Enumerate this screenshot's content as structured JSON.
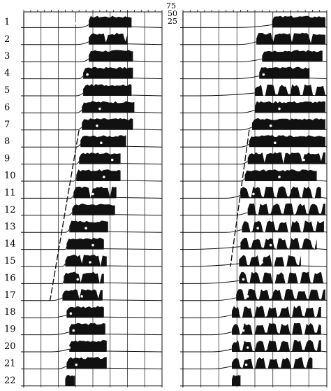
{
  "figure": {
    "row_labels": [
      "1",
      "2",
      "3",
      "4",
      "5",
      "6",
      "7",
      "8",
      "9",
      "10",
      "11",
      "12",
      "13",
      "14",
      "15",
      "16",
      "17",
      "18",
      "19",
      "20",
      "21",
      "22"
    ],
    "scale_labels": [
      "75",
      "50",
      "25"
    ],
    "ink_color": "#111111",
    "background_color": "#ffffff",
    "panels": [
      {
        "name": "left",
        "rows": [
          {
            "onset": 0.4,
            "start": 0.47,
            "end": 0.78,
            "pattern": "solid",
            "marker": 0.37
          },
          {
            "onset": 0.38,
            "start": 0.47,
            "end": 0.75,
            "pattern": "burst",
            "marker": 0.36
          },
          {
            "onset": 0.42,
            "start": 0.47,
            "end": 0.79,
            "pattern": "solid",
            "marker": null
          },
          {
            "onset": 0.4,
            "start": 0.43,
            "end": 0.79,
            "pattern": "solid",
            "marker": 0.46
          },
          {
            "onset": 0.38,
            "start": 0.43,
            "end": 0.78,
            "pattern": "solid",
            "marker": null
          },
          {
            "onset": 0.38,
            "start": 0.42,
            "end": 0.8,
            "pattern": "solid",
            "marker": 0.55
          },
          {
            "onset": 0.38,
            "start": 0.42,
            "end": 0.79,
            "pattern": "solid",
            "marker": 0.53
          },
          {
            "onset": 0.38,
            "start": 0.41,
            "end": 0.74,
            "pattern": "solid",
            "marker": 0.56
          },
          {
            "onset": 0.38,
            "start": 0.4,
            "end": 0.7,
            "pattern": "solid",
            "marker": 0.64
          },
          {
            "onset": 0.36,
            "start": 0.38,
            "end": 0.7,
            "pattern": "solid",
            "marker": 0.58
          },
          {
            "onset": 0.34,
            "start": 0.36,
            "end": 0.67,
            "pattern": "burst",
            "marker": 0.5
          },
          {
            "onset": 0.32,
            "start": 0.35,
            "end": 0.66,
            "pattern": "solid",
            "marker": null
          },
          {
            "onset": 0.3,
            "start": 0.33,
            "end": 0.61,
            "pattern": "solid",
            "marker": 0.45
          },
          {
            "onset": 0.3,
            "start": 0.31,
            "end": 0.58,
            "pattern": "solid",
            "marker": 0.5
          },
          {
            "onset": 0.28,
            "start": 0.3,
            "end": 0.6,
            "pattern": "burst",
            "marker": 0.48
          },
          {
            "onset": 0.28,
            "start": 0.29,
            "end": 0.58,
            "pattern": "burst",
            "marker": 0.39
          },
          {
            "onset": 0.2,
            "start": 0.28,
            "end": 0.57,
            "pattern": "burst",
            "marker": 0.42
          },
          {
            "onset": 0.2,
            "start": 0.31,
            "end": 0.58,
            "pattern": "solid",
            "marker": 0.34
          },
          {
            "onset": 0.2,
            "start": 0.33,
            "end": 0.59,
            "pattern": "solid",
            "marker": 0.36
          },
          {
            "onset": 0.2,
            "start": 0.33,
            "end": 0.6,
            "pattern": "solid",
            "marker": 0.33
          },
          {
            "onset": 0.24,
            "start": 0.31,
            "end": 0.6,
            "pattern": "solid",
            "marker": 0.38
          },
          {
            "onset": null,
            "start": 0.3,
            "end": 0.37,
            "pattern": "solid",
            "marker": null
          }
        ]
      },
      {
        "name": "right",
        "rows": [
          {
            "onset": 0.38,
            "start": 0.62,
            "end": 0.99,
            "pattern": "solid",
            "marker": 0.44
          },
          {
            "onset": 0.38,
            "start": 0.51,
            "end": 0.99,
            "pattern": "burst",
            "marker": 0.46
          },
          {
            "onset": 0.4,
            "start": 0.55,
            "end": 0.97,
            "pattern": "solid",
            "marker": null
          },
          {
            "onset": 0.36,
            "start": 0.53,
            "end": 0.88,
            "pattern": "solid",
            "marker": 0.56
          },
          {
            "onset": 0.1,
            "start": 0.5,
            "end": 0.99,
            "pattern": "scallop",
            "marker": null
          },
          {
            "onset": 0.4,
            "start": 0.5,
            "end": 0.99,
            "pattern": "solid",
            "marker": 0.67
          },
          {
            "onset": 0.4,
            "start": 0.48,
            "end": 0.99,
            "pattern": "solid",
            "marker": 0.61
          },
          {
            "onset": 0.4,
            "start": 0.46,
            "end": 0.99,
            "pattern": "solid",
            "marker": 0.64
          },
          {
            "onset": 0.4,
            "start": 0.45,
            "end": 0.99,
            "pattern": "burst",
            "marker": 0.84
          },
          {
            "onset": 0.4,
            "start": 0.43,
            "end": 0.93,
            "pattern": "solid",
            "marker": 0.67
          },
          {
            "onset": 0.3,
            "start": 0.4,
            "end": 0.96,
            "pattern": "scallop",
            "marker": 0.49
          },
          {
            "onset": 0.35,
            "start": 0.45,
            "end": 0.99,
            "pattern": "scallop",
            "marker": null
          },
          {
            "onset": 0.3,
            "start": 0.41,
            "end": 0.98,
            "pattern": "scallop",
            "marker": 0.52
          },
          {
            "onset": 0.02,
            "start": 0.4,
            "end": 0.93,
            "pattern": "scallop",
            "marker": 0.61
          },
          {
            "onset": 0.02,
            "start": 0.39,
            "end": 0.82,
            "pattern": "scallop",
            "marker": 0.55
          },
          {
            "onset": 0.1,
            "start": 0.39,
            "end": 0.99,
            "pattern": "scallop",
            "marker": 0.42
          },
          {
            "onset": 0.2,
            "start": 0.37,
            "end": 0.99,
            "pattern": "scallop",
            "marker": 0.45
          },
          {
            "onset": 0.2,
            "start": 0.34,
            "end": 0.96,
            "pattern": "scallop",
            "marker": 0.4
          },
          {
            "onset": 0.2,
            "start": 0.34,
            "end": 0.96,
            "pattern": "scallop",
            "marker": 0.42
          },
          {
            "onset": 0.2,
            "start": 0.34,
            "end": 0.96,
            "pattern": "scallop",
            "marker": 0.45
          },
          {
            "onset": 0.2,
            "start": 0.34,
            "end": 0.9,
            "pattern": "scallop",
            "marker": 0.44
          },
          {
            "onset": null,
            "start": 0.34,
            "end": 0.4,
            "pattern": "solid",
            "marker": null
          }
        ]
      }
    ]
  }
}
